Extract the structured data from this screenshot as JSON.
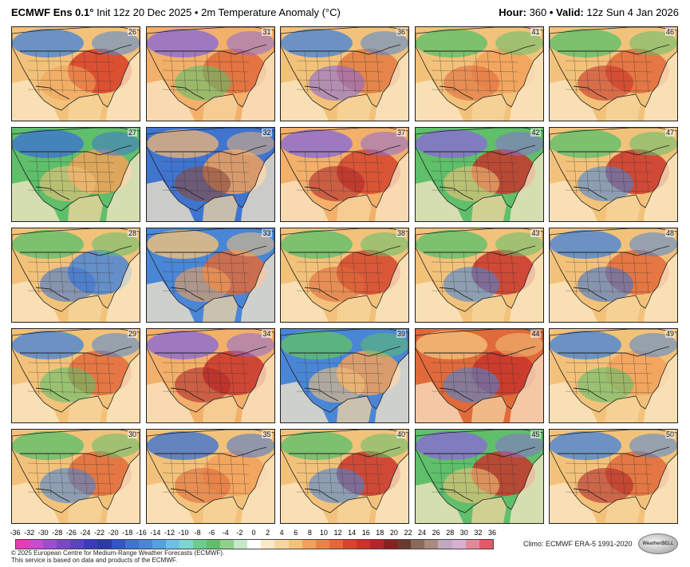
{
  "header": {
    "model": "ECMWF Ens 0.1",
    "degree": "°",
    "init": " Init 12z 20 Dec 2025",
    "bullet": " • ",
    "variable": "2m Temperature Anomaly (°C)",
    "hour_label": "Hour:",
    "hour_value": " 360 ",
    "valid_label": "• Valid:",
    "valid_value": " 12z Sun 4 Jan 2026"
  },
  "panels": [
    {
      "member": "26",
      "colors": [
        "#d73c24",
        "#4a86d6",
        "#f3c27a",
        "#f2a15a"
      ]
    },
    {
      "member": "31",
      "colors": [
        "#e06a3a",
        "#8a6bd6",
        "#f3b06a",
        "#5fbf6a"
      ]
    },
    {
      "member": "36",
      "colors": [
        "#e27a42",
        "#4a86d6",
        "#f3c27a",
        "#8a6bd6"
      ]
    },
    {
      "member": "41",
      "colors": [
        "#f2a15a",
        "#5fbf6a",
        "#f3c27a",
        "#e06a3a"
      ]
    },
    {
      "member": "46",
      "colors": [
        "#e06a3a",
        "#5fbf6a",
        "#f3c27a",
        "#c8342a"
      ]
    },
    {
      "member": "27",
      "colors": [
        "#f2a15a",
        "#3f74cf",
        "#5fbf6a",
        "#f3c27a"
      ]
    },
    {
      "member": "32",
      "colors": [
        "#f2a15a",
        "#e7b37a",
        "#3f74cf",
        "#8a4a3a"
      ]
    },
    {
      "member": "37",
      "colors": [
        "#d4452c",
        "#8a6bd6",
        "#f3b06a",
        "#b0282a"
      ]
    },
    {
      "member": "42",
      "colors": [
        "#c8342a",
        "#8a6bd6",
        "#5fbf6a",
        "#f3c27a"
      ]
    },
    {
      "member": "47",
      "colors": [
        "#c8342a",
        "#5fbf6a",
        "#f3c27a",
        "#4a86d6"
      ]
    },
    {
      "member": "28",
      "colors": [
        "#4a86d6",
        "#5fbf6a",
        "#f3c27a",
        "#3f74cf"
      ]
    },
    {
      "member": "33",
      "colors": [
        "#e06a3a",
        "#f3c27a",
        "#4a86d6",
        "#f2a15a"
      ]
    },
    {
      "member": "38",
      "colors": [
        "#d4452c",
        "#5fbf6a",
        "#f3c27a",
        "#e06a3a"
      ]
    },
    {
      "member": "43",
      "colors": [
        "#c8342a",
        "#5fbf6a",
        "#f3c27a",
        "#4a86d6"
      ]
    },
    {
      "member": "48",
      "colors": [
        "#e06a3a",
        "#4a86d6",
        "#f3c27a",
        "#3f74cf"
      ]
    },
    {
      "member": "29",
      "colors": [
        "#e06a3a",
        "#4a86d6",
        "#f3c27a",
        "#5fbf6a"
      ]
    },
    {
      "member": "34",
      "colors": [
        "#c8342a",
        "#8a6bd6",
        "#f3b06a",
        "#b0282a"
      ]
    },
    {
      "member": "39",
      "colors": [
        "#f2a15a",
        "#5fbf6a",
        "#4a86d6",
        "#f3c27a"
      ]
    },
    {
      "member": "44",
      "colors": [
        "#c8342a",
        "#f3c27a",
        "#e06a3a",
        "#4a86d6"
      ]
    },
    {
      "member": "49",
      "colors": [
        "#f2a15a",
        "#4a86d6",
        "#f3c27a",
        "#5fbf6a"
      ]
    },
    {
      "member": "30",
      "colors": [
        "#e06a3a",
        "#5fbf6a",
        "#f3c27a",
        "#4a86d6"
      ]
    },
    {
      "member": "35",
      "colors": [
        "#f2a15a",
        "#3f74cf",
        "#f3c27a",
        "#e06a3a"
      ]
    },
    {
      "member": "40",
      "colors": [
        "#c8342a",
        "#5fbf6a",
        "#f3c27a",
        "#4a86d6"
      ]
    },
    {
      "member": "45",
      "colors": [
        "#c8342a",
        "#8a6bd6",
        "#5fbf6a",
        "#f3c27a"
      ]
    },
    {
      "member": "50",
      "colors": [
        "#e06a3a",
        "#4a86d6",
        "#f3c27a",
        "#b0282a"
      ]
    }
  ],
  "colorbar": {
    "labels": [
      "-36",
      "-32",
      "-30",
      "-28",
      "-26",
      "-24",
      "-22",
      "-20",
      "-18",
      "-16",
      "-14",
      "-12",
      "-10",
      "-8",
      "-6",
      "-4",
      "-2",
      "0",
      "2",
      "4",
      "6",
      "8",
      "10",
      "12",
      "14",
      "16",
      "18",
      "20",
      "22",
      "24",
      "26",
      "28",
      "30",
      "32",
      "36"
    ],
    "colors": [
      "#e23fb6",
      "#c84bd0",
      "#a04cd0",
      "#7c48c8",
      "#5a44c0",
      "#3c3cb8",
      "#2a3aa8",
      "#3356c4",
      "#3f74cf",
      "#4a86d6",
      "#55a0e0",
      "#6cc0e8",
      "#7cd6d0",
      "#6ccc8c",
      "#5fbf6a",
      "#8ed08c",
      "#c6e8c8",
      "#ffffff",
      "#fbe8c8",
      "#f6d6a0",
      "#f3c27a",
      "#f2a15a",
      "#ea8248",
      "#e06a3a",
      "#d4452c",
      "#c8342a",
      "#b0282a",
      "#8a2020",
      "#6a3a30",
      "#8a6a5a",
      "#a88a80",
      "#c2a8c0",
      "#d8b0d0",
      "#e2889a",
      "#e05a6a"
    ]
  },
  "climo": "Climo: ECMWF ERA-5 1991-2020",
  "footer": {
    "line1": "© 2025 European Centre for Medium-Range Weather Forecasts (ECMWF).",
    "line2": "This service is based on data and products of the ECMWF."
  },
  "logo": "WeatherBELL"
}
